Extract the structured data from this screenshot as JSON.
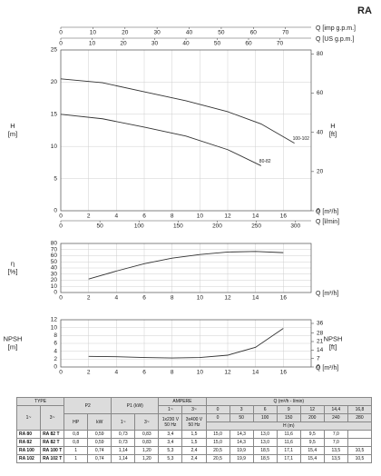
{
  "title": "RA",
  "chart_data": [
    {
      "type": "line",
      "xlabel": "Q [m³/h]",
      "xlim": [
        0,
        18
      ],
      "xticks": [
        0,
        2,
        4,
        6,
        8,
        10,
        12,
        14,
        16
      ],
      "extra_x_axes": [
        {
          "position": "top",
          "label": "Q [imp g.p.m.]",
          "xlim": [
            0,
            78
          ],
          "xticks": [
            0,
            10,
            20,
            30,
            40,
            50,
            60,
            70
          ]
        },
        {
          "position": "top",
          "label": "Q [US g.p.m.]",
          "xlim": [
            0,
            80
          ],
          "xticks": [
            0,
            10,
            20,
            30,
            40,
            50,
            60,
            70
          ]
        },
        {
          "position": "bottom",
          "label": "Q [l/min]",
          "xlim": [
            0,
            320
          ],
          "xticks": [
            0,
            50,
            100,
            150,
            200,
            250,
            300
          ]
        }
      ],
      "ylabel": [
        "H",
        "[m]"
      ],
      "ylim": [
        0,
        25
      ],
      "yticks": [
        0,
        5,
        10,
        15,
        20,
        25
      ],
      "y2label": [
        "H",
        "[ft]"
      ],
      "y2lim": [
        0,
        82
      ],
      "y2ticks": [
        0,
        20,
        40,
        60,
        80
      ],
      "grid": true,
      "series": [
        {
          "name": "100-102",
          "color": "#333333",
          "x": [
            0,
            3,
            6,
            9,
            12,
            14.4,
            16.8
          ],
          "values": [
            20.5,
            19.9,
            18.5,
            17.1,
            15.4,
            13.5,
            10.5
          ]
        },
        {
          "name": "80-82",
          "color": "#333333",
          "x": [
            0,
            3,
            6,
            9,
            12,
            14.4
          ],
          "values": [
            15.0,
            14.3,
            13.0,
            11.6,
            9.5,
            7.0
          ]
        }
      ]
    },
    {
      "type": "line",
      "xlabel": "Q [m³/h]",
      "xlim": [
        0,
        18
      ],
      "xticks": [
        0,
        2,
        4,
        6,
        8,
        10,
        12,
        14,
        16
      ],
      "ylabel": [
        "η",
        "[%]"
      ],
      "ylim": [
        0,
        80
      ],
      "yticks": [
        0,
        10,
        20,
        30,
        40,
        50,
        60,
        70,
        80
      ],
      "grid": true,
      "color": "#333333",
      "x": [
        2,
        4,
        6,
        8,
        10,
        12,
        14,
        16
      ],
      "values": [
        22,
        35,
        47,
        56,
        62,
        66,
        67,
        65
      ]
    },
    {
      "type": "line",
      "xlabel": "Q [m³/h]",
      "xlim": [
        0,
        18
      ],
      "xticks": [
        0,
        2,
        4,
        6,
        8,
        10,
        12,
        14,
        16
      ],
      "ylabel": [
        "NPSH",
        "[m]"
      ],
      "ylim": [
        0,
        12
      ],
      "yticks": [
        0,
        2,
        4,
        6,
        8,
        10,
        12
      ],
      "y2label": [
        "NPSH",
        "[ft]"
      ],
      "y2lim": [
        0,
        39
      ],
      "y2ticks": [
        0,
        7,
        14,
        21,
        28,
        36
      ],
      "grid": true,
      "color": "#333333",
      "x": [
        2,
        4,
        6,
        8,
        10,
        12,
        14,
        16
      ],
      "values": [
        2.7,
        2.6,
        2.4,
        2.3,
        2.4,
        3.0,
        5.0,
        9.8
      ]
    }
  ],
  "table": {
    "type": "TYPE",
    "p2": "P2",
    "p1": "P1 (kW)",
    "ampere": "AMPERE",
    "q": "Q (m³/h - l/min)",
    "type_sub": [
      "1~",
      "3~"
    ],
    "p2_sub": [
      "HP",
      "kW"
    ],
    "p1_sub": [
      "1~",
      "3~"
    ],
    "amp_sub": [
      "1~",
      "3~"
    ],
    "amp_volt": [
      "1x230 V 50 Hz",
      "3x400 V 50 Hz"
    ],
    "q_m3h": [
      "0",
      "3",
      "6",
      "9",
      "12",
      "14,4",
      "16,8"
    ],
    "q_lmin": [
      "0",
      "50",
      "100",
      "150",
      "200",
      "240",
      "280"
    ],
    "h": "H (m)",
    "rows": [
      [
        "RA 80",
        "RA 82 T",
        "0,8",
        "0,59",
        "0,73",
        "0,83",
        "3,4",
        "1,5",
        "15,0",
        "14,3",
        "13,0",
        "11,6",
        "9,5",
        "7,0"
      ],
      [
        "RA 82",
        "RA 82 T",
        "0,8",
        "0,59",
        "0,73",
        "0,83",
        "3,4",
        "1,5",
        "15,0",
        "14,3",
        "13,0",
        "11,6",
        "9,5",
        "7,0"
      ],
      [
        "RA 100",
        "RA 100 T",
        "1",
        "0,74",
        "1,14",
        "1,20",
        "5,3",
        "2,4",
        "20,5",
        "19,9",
        "18,5",
        "17,1",
        "15,4",
        "13,5",
        "10,5"
      ],
      [
        "RA 102",
        "RA 102 T",
        "1",
        "0,74",
        "1,14",
        "1,20",
        "5,3",
        "2,4",
        "20,5",
        "19,9",
        "18,5",
        "17,1",
        "15,4",
        "13,5",
        "10,5"
      ]
    ]
  }
}
